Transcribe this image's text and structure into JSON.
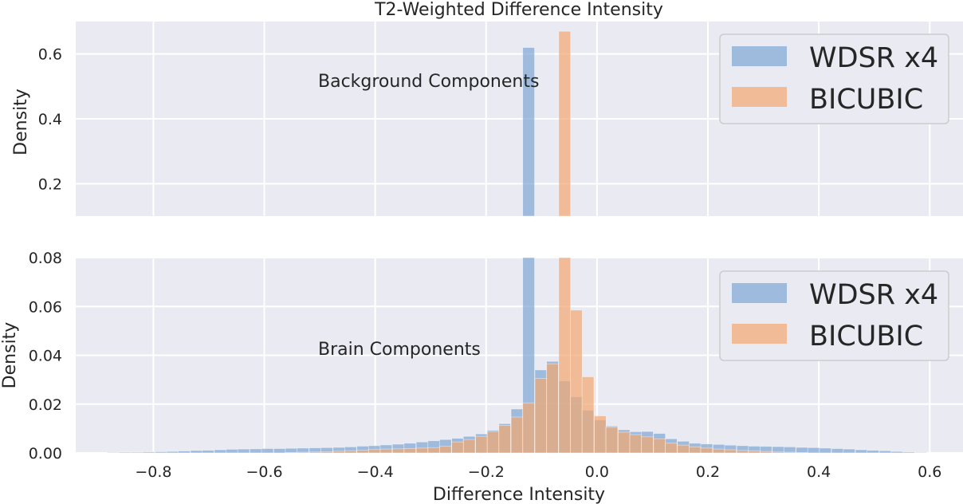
{
  "chart_data": {
    "type": "bar",
    "title": "T2-Weighted Difference Intensity",
    "xlabel": "Difference Intensity",
    "xlim": [
      -0.94,
      0.66
    ],
    "x_ticks": [
      -0.8,
      -0.6,
      -0.4,
      -0.2,
      0.0,
      0.2,
      0.4,
      0.6
    ],
    "x_tick_labels": [
      "−0.8",
      "−0.6",
      "−0.4",
      "−0.2",
      "0.0",
      "0.2",
      "0.4",
      "0.6"
    ],
    "bin_width": 0.0214,
    "colors": {
      "WDSR x4": "#7da7d4",
      "BICUBIC": "#f2a66f"
    },
    "series": [
      {
        "name": "WDSR x4",
        "bins": [
          [
            -0.883,
            0.0002
          ],
          [
            -0.862,
            0.0003
          ],
          [
            -0.84,
            0.0003
          ],
          [
            -0.819,
            0.0004
          ],
          [
            -0.797,
            0.0005
          ],
          [
            -0.776,
            0.0006
          ],
          [
            -0.755,
            0.0008
          ],
          [
            -0.733,
            0.001
          ],
          [
            -0.712,
            0.0011
          ],
          [
            -0.69,
            0.0013
          ],
          [
            -0.669,
            0.0015
          ],
          [
            -0.648,
            0.0016
          ],
          [
            -0.626,
            0.0017
          ],
          [
            -0.605,
            0.0018
          ],
          [
            -0.583,
            0.0018
          ],
          [
            -0.562,
            0.0019
          ],
          [
            -0.541,
            0.002
          ],
          [
            -0.519,
            0.0021
          ],
          [
            -0.498,
            0.0022
          ],
          [
            -0.476,
            0.0023
          ],
          [
            -0.455,
            0.0025
          ],
          [
            -0.433,
            0.0028
          ],
          [
            -0.412,
            0.003
          ],
          [
            -0.391,
            0.0033
          ],
          [
            -0.369,
            0.0036
          ],
          [
            -0.348,
            0.004
          ],
          [
            -0.326,
            0.0045
          ],
          [
            -0.305,
            0.005
          ],
          [
            -0.284,
            0.0055
          ],
          [
            -0.262,
            0.006
          ],
          [
            -0.241,
            0.0068
          ],
          [
            -0.219,
            0.0078
          ],
          [
            -0.198,
            0.0093
          ],
          [
            -0.177,
            0.012
          ],
          [
            -0.155,
            0.018
          ],
          [
            -0.134,
            0.62
          ],
          [
            -0.112,
            0.034
          ],
          [
            -0.091,
            0.0375
          ],
          [
            -0.069,
            0.0295
          ],
          [
            -0.048,
            0.023
          ],
          [
            -0.027,
            0.0175
          ],
          [
            -0.005,
            0.0135
          ],
          [
            0.016,
            0.011
          ],
          [
            0.038,
            0.0095
          ],
          [
            0.059,
            0.0087
          ],
          [
            0.08,
            0.0088
          ],
          [
            0.102,
            0.008
          ],
          [
            0.123,
            0.0058
          ],
          [
            0.145,
            0.0048
          ],
          [
            0.166,
            0.004
          ],
          [
            0.187,
            0.0037
          ],
          [
            0.209,
            0.0035
          ],
          [
            0.23,
            0.0032
          ],
          [
            0.252,
            0.003
          ],
          [
            0.273,
            0.0028
          ],
          [
            0.294,
            0.0027
          ],
          [
            0.316,
            0.0026
          ],
          [
            0.337,
            0.0025
          ],
          [
            0.359,
            0.0023
          ],
          [
            0.38,
            0.0022
          ],
          [
            0.401,
            0.002
          ],
          [
            0.423,
            0.0018
          ],
          [
            0.444,
            0.0016
          ],
          [
            0.466,
            0.0013
          ],
          [
            0.487,
            0.0011
          ],
          [
            0.509,
            0.0009
          ],
          [
            0.53,
            0.0006
          ],
          [
            0.551,
            0.0004
          ],
          [
            0.573,
            0.0002
          ]
        ]
      },
      {
        "name": "BICUBIC",
        "bins": [
          [
            -0.562,
            0.0002
          ],
          [
            -0.541,
            0.0003
          ],
          [
            -0.519,
            0.0004
          ],
          [
            -0.498,
            0.0005
          ],
          [
            -0.476,
            0.0007
          ],
          [
            -0.455,
            0.0009
          ],
          [
            -0.433,
            0.0011
          ],
          [
            -0.412,
            0.0014
          ],
          [
            -0.391,
            0.0016
          ],
          [
            -0.369,
            0.0017
          ],
          [
            -0.348,
            0.0018
          ],
          [
            -0.326,
            0.002
          ],
          [
            -0.305,
            0.0022
          ],
          [
            -0.284,
            0.0027
          ],
          [
            -0.262,
            0.0045
          ],
          [
            -0.241,
            0.0055
          ],
          [
            -0.219,
            0.0068
          ],
          [
            -0.198,
            0.0088
          ],
          [
            -0.177,
            0.0113
          ],
          [
            -0.155,
            0.0147
          ],
          [
            -0.134,
            0.0205
          ],
          [
            -0.112,
            0.0305
          ],
          [
            -0.091,
            0.0365
          ],
          [
            -0.069,
            0.67
          ],
          [
            -0.048,
            0.0585
          ],
          [
            -0.027,
            0.0312
          ],
          [
            -0.005,
            0.0152
          ],
          [
            0.016,
            0.0105
          ],
          [
            0.038,
            0.0085
          ],
          [
            0.059,
            0.0075
          ],
          [
            0.08,
            0.0066
          ],
          [
            0.102,
            0.0058
          ],
          [
            0.123,
            0.004
          ],
          [
            0.145,
            0.0032
          ],
          [
            0.166,
            0.0025
          ],
          [
            0.187,
            0.002
          ],
          [
            0.209,
            0.0016
          ],
          [
            0.23,
            0.0013
          ],
          [
            0.252,
            0.001
          ],
          [
            0.273,
            0.0008
          ],
          [
            0.294,
            0.0006
          ],
          [
            0.316,
            0.0004
          ],
          [
            0.337,
            0.0003
          ],
          [
            0.359,
            0.0002
          ]
        ]
      }
    ],
    "panels": [
      {
        "ylabel": "Density",
        "ylim": [
          0.1,
          0.7
        ],
        "y_ticks": [
          0.2,
          0.4,
          0.6
        ],
        "y_tick_labels": [
          "0.2",
          "0.4",
          "0.6"
        ],
        "annotation": "Background Components",
        "legend": [
          "WDSR x4",
          "BICUBIC"
        ],
        "legend_position": "top-right",
        "grid": true
      },
      {
        "ylabel": "Density",
        "ylim": [
          0.0,
          0.08
        ],
        "y_ticks": [
          0.0,
          0.02,
          0.04,
          0.06,
          0.08
        ],
        "y_tick_labels": [
          "0.00",
          "0.02",
          "0.04",
          "0.06",
          "0.08"
        ],
        "annotation": "Brain Components",
        "legend": [
          "WDSR x4",
          "BICUBIC"
        ],
        "legend_position": "upper-right",
        "grid": true
      }
    ]
  }
}
